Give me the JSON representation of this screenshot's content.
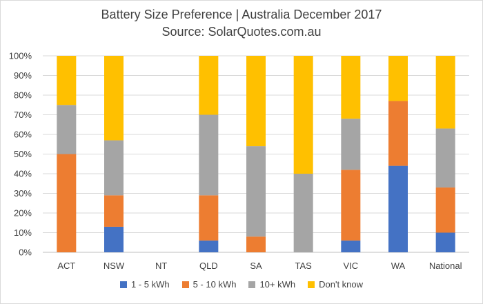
{
  "chart_data": {
    "type": "bar",
    "stacked": true,
    "title": "Battery Size Preference  | Australia December 2017",
    "subtitle": "Source: SolarQuotes.com.au",
    "categories": [
      "ACT",
      "NSW",
      "NT",
      "QLD",
      "SA",
      "TAS",
      "VIC",
      "WA",
      "National"
    ],
    "ylim": [
      0,
      100
    ],
    "yticks": [
      "0%",
      "10%",
      "20%",
      "30%",
      "40%",
      "50%",
      "60%",
      "70%",
      "80%",
      "90%",
      "100%"
    ],
    "grid": true,
    "legend_position": "bottom",
    "series": [
      {
        "name": "1 - 5 kWh",
        "color": "#4472C4",
        "values": [
          0,
          13,
          0,
          6,
          0,
          0,
          6,
          44,
          10
        ]
      },
      {
        "name": "5 - 10 kWh",
        "color": "#ED7D31",
        "values": [
          50,
          16,
          0,
          23,
          8,
          0,
          36,
          33,
          23
        ]
      },
      {
        "name": "10+ kWh",
        "color": "#A5A5A5",
        "values": [
          25,
          28,
          0,
          41,
          46,
          40,
          26,
          0,
          30
        ]
      },
      {
        "name": "Don't know",
        "color": "#FFC000",
        "values": [
          25,
          43,
          0,
          30,
          46,
          60,
          32,
          23,
          37
        ]
      }
    ]
  }
}
